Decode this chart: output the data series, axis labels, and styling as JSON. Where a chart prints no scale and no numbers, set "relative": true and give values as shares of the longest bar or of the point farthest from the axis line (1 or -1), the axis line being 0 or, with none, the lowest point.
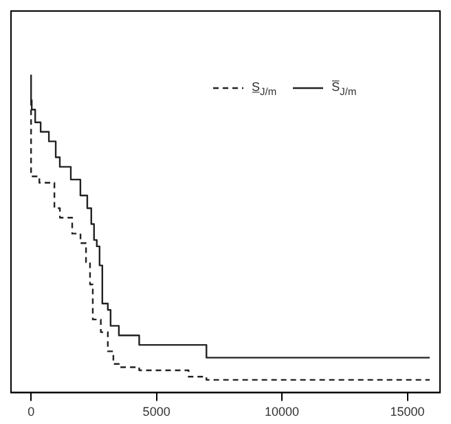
{
  "chart_data": {
    "type": "step",
    "relative": true,
    "xlim": [
      -800,
      16300
    ],
    "xticks": [
      0,
      5000,
      10000,
      15000
    ],
    "legend": "top right",
    "grid": false,
    "series": [
      {
        "name": "S̲$_{J/m}$",
        "color": "#222222",
        "line_style": "dashed",
        "x": [
          0,
          0,
          330,
          930,
          1150,
          1640,
          1970,
          2190,
          2350,
          2460,
          2780,
          3060,
          3280,
          3500,
          4310,
          6280,
          6990,
          7860,
          15890
        ],
        "values": [
          0.92,
          0.76,
          0.68,
          0.66,
          0.58,
          0.55,
          0.5,
          0.47,
          0.41,
          0.34,
          0.23,
          0.19,
          0.13,
          0.09,
          0.08,
          0.07,
          0.05,
          0.04,
          0.04
        ]
      },
      {
        "name": "S̅$_{J/m}$",
        "color": "#222222",
        "line_style": "solid",
        "x": [
          0,
          27,
          164,
          382,
          710,
          983,
          1146,
          1584,
          1966,
          2240,
          2400,
          2510,
          2620,
          2730,
          2840,
          3060,
          3170,
          3500,
          4310,
          6990,
          7860,
          15890
        ],
        "values": [
          1,
          0.92,
          0.89,
          0.85,
          0.82,
          0.79,
          0.74,
          0.71,
          0.67,
          0.62,
          0.58,
          0.53,
          0.48,
          0.46,
          0.4,
          0.28,
          0.26,
          0.21,
          0.18,
          0.15,
          0.11,
          0.11
        ]
      }
    ]
  }
}
